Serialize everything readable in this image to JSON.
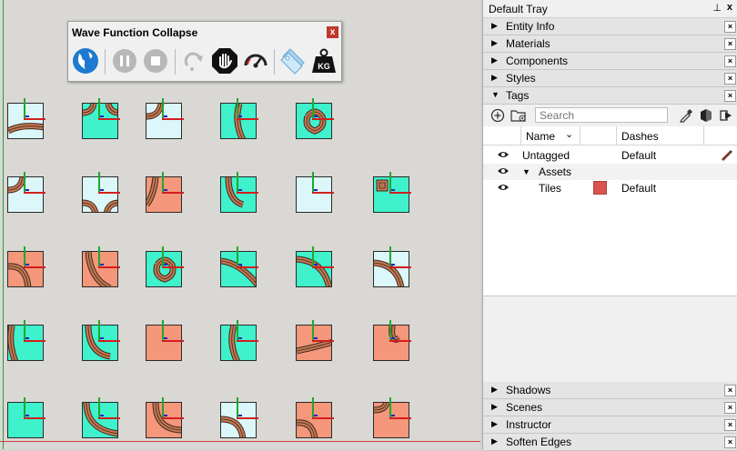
{
  "toolbar": {
    "title": "Wave Function Collapse",
    "close_label": "x",
    "buttons": [
      {
        "name": "globe-button",
        "icon": "globe-icon"
      },
      {
        "name": "pause-button",
        "icon": "pause-icon"
      },
      {
        "name": "stop-button",
        "icon": "stop-icon"
      },
      {
        "name": "redo-button",
        "icon": "redo-icon"
      },
      {
        "name": "stop-hand-button",
        "icon": "stop-hand-icon"
      },
      {
        "name": "speed-button",
        "icon": "speedometer-icon"
      },
      {
        "name": "tag-button",
        "icon": "tag-icon"
      },
      {
        "name": "weight-button",
        "icon": "weight-icon",
        "label": "KG"
      }
    ]
  },
  "tray": {
    "title": "Default Tray",
    "pin": "⊥",
    "close": "x",
    "panels_top": [
      {
        "label": "Entity Info",
        "expanded": false
      },
      {
        "label": "Materials",
        "expanded": false
      },
      {
        "label": "Components",
        "expanded": false
      },
      {
        "label": "Styles",
        "expanded": false
      },
      {
        "label": "Tags",
        "expanded": true
      }
    ],
    "panels_bottom": [
      {
        "label": "Shadows",
        "expanded": false
      },
      {
        "label": "Scenes",
        "expanded": false
      },
      {
        "label": "Instructor",
        "expanded": false
      },
      {
        "label": "Soften Edges",
        "expanded": false
      }
    ]
  },
  "tags": {
    "search_placeholder": "Search",
    "columns": {
      "name": "Name",
      "dashes": "Dashes"
    },
    "rows": [
      {
        "name": "Untagged",
        "dashes": "Default",
        "indent": 0,
        "color": ""
      },
      {
        "name": "Assets",
        "dashes": "",
        "indent": 1,
        "color": ""
      },
      {
        "name": "Tiles",
        "dashes": "Default",
        "indent": 2,
        "color": "#d9534f"
      }
    ]
  },
  "colors": {
    "cyan": "#3ff2cc",
    "light": "#dbf7f9",
    "orange": "#f4977a",
    "path": "#c67852"
  }
}
